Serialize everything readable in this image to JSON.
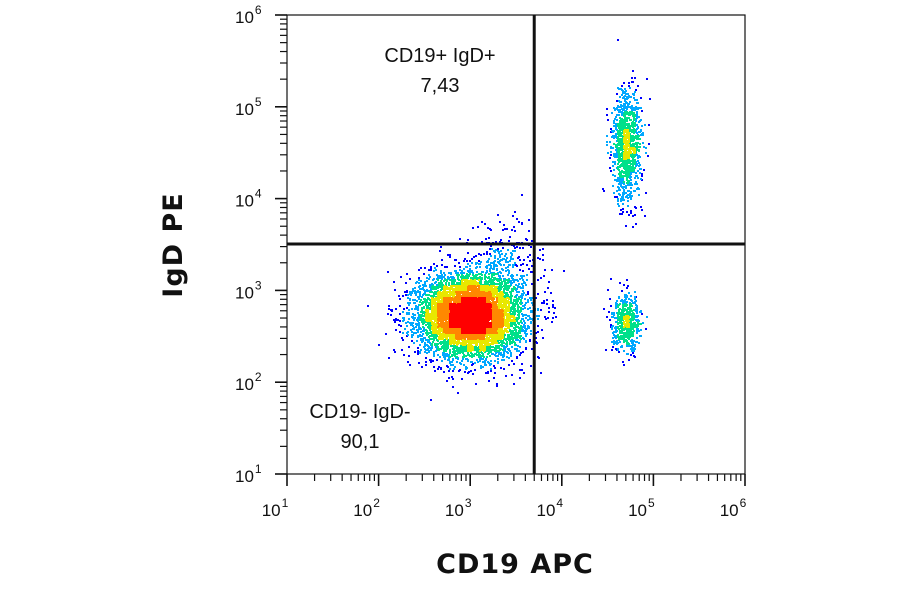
{
  "chart_data": {
    "type": "scatter",
    "subtype": "flow-cytometry-density-dot-plot",
    "xlabel": "CD19 APC",
    "ylabel": "IgD PE",
    "x_scale": "log",
    "y_scale": "log",
    "xlim": [
      10,
      1000000
    ],
    "ylim": [
      10,
      1000000
    ],
    "x_ticks": [
      {
        "base": "10",
        "exp": "1"
      },
      {
        "base": "10",
        "exp": "2"
      },
      {
        "base": "10",
        "exp": "3"
      },
      {
        "base": "10",
        "exp": "4"
      },
      {
        "base": "10",
        "exp": "5"
      },
      {
        "base": "10",
        "exp": "6"
      }
    ],
    "y_ticks": [
      {
        "base": "10",
        "exp": "1"
      },
      {
        "base": "10",
        "exp": "2"
      },
      {
        "base": "10",
        "exp": "3"
      },
      {
        "base": "10",
        "exp": "4"
      },
      {
        "base": "10",
        "exp": "5"
      },
      {
        "base": "10",
        "exp": "6"
      }
    ],
    "gate": {
      "x": 5000,
      "y": 3200
    },
    "quadrants": [
      {
        "name": "CD19+ IgD+",
        "value": "7,43",
        "position": "top-center"
      },
      {
        "name": "CD19- IgD-",
        "value": "90,1",
        "position": "bottom-left"
      }
    ],
    "populations": [
      {
        "center": [
          1000,
          550
        ],
        "spread_log": [
          0.28,
          0.22
        ],
        "weight": 0.8
      },
      {
        "center": [
          50000,
          38000
        ],
        "spread_log": [
          0.08,
          0.3
        ],
        "weight": 0.12
      },
      {
        "center": [
          50000,
          450
        ],
        "spread_log": [
          0.08,
          0.15
        ],
        "weight": 0.06
      },
      {
        "center": [
          2500,
          2500
        ],
        "spread_log": [
          0.2,
          0.2
        ],
        "weight": 0.02
      }
    ],
    "colormap": [
      "#0000ff",
      "#00a8ff",
      "#00e08a",
      "#e8e800",
      "#ff8800",
      "#ff0000"
    ],
    "grid": false,
    "legend": "none"
  }
}
